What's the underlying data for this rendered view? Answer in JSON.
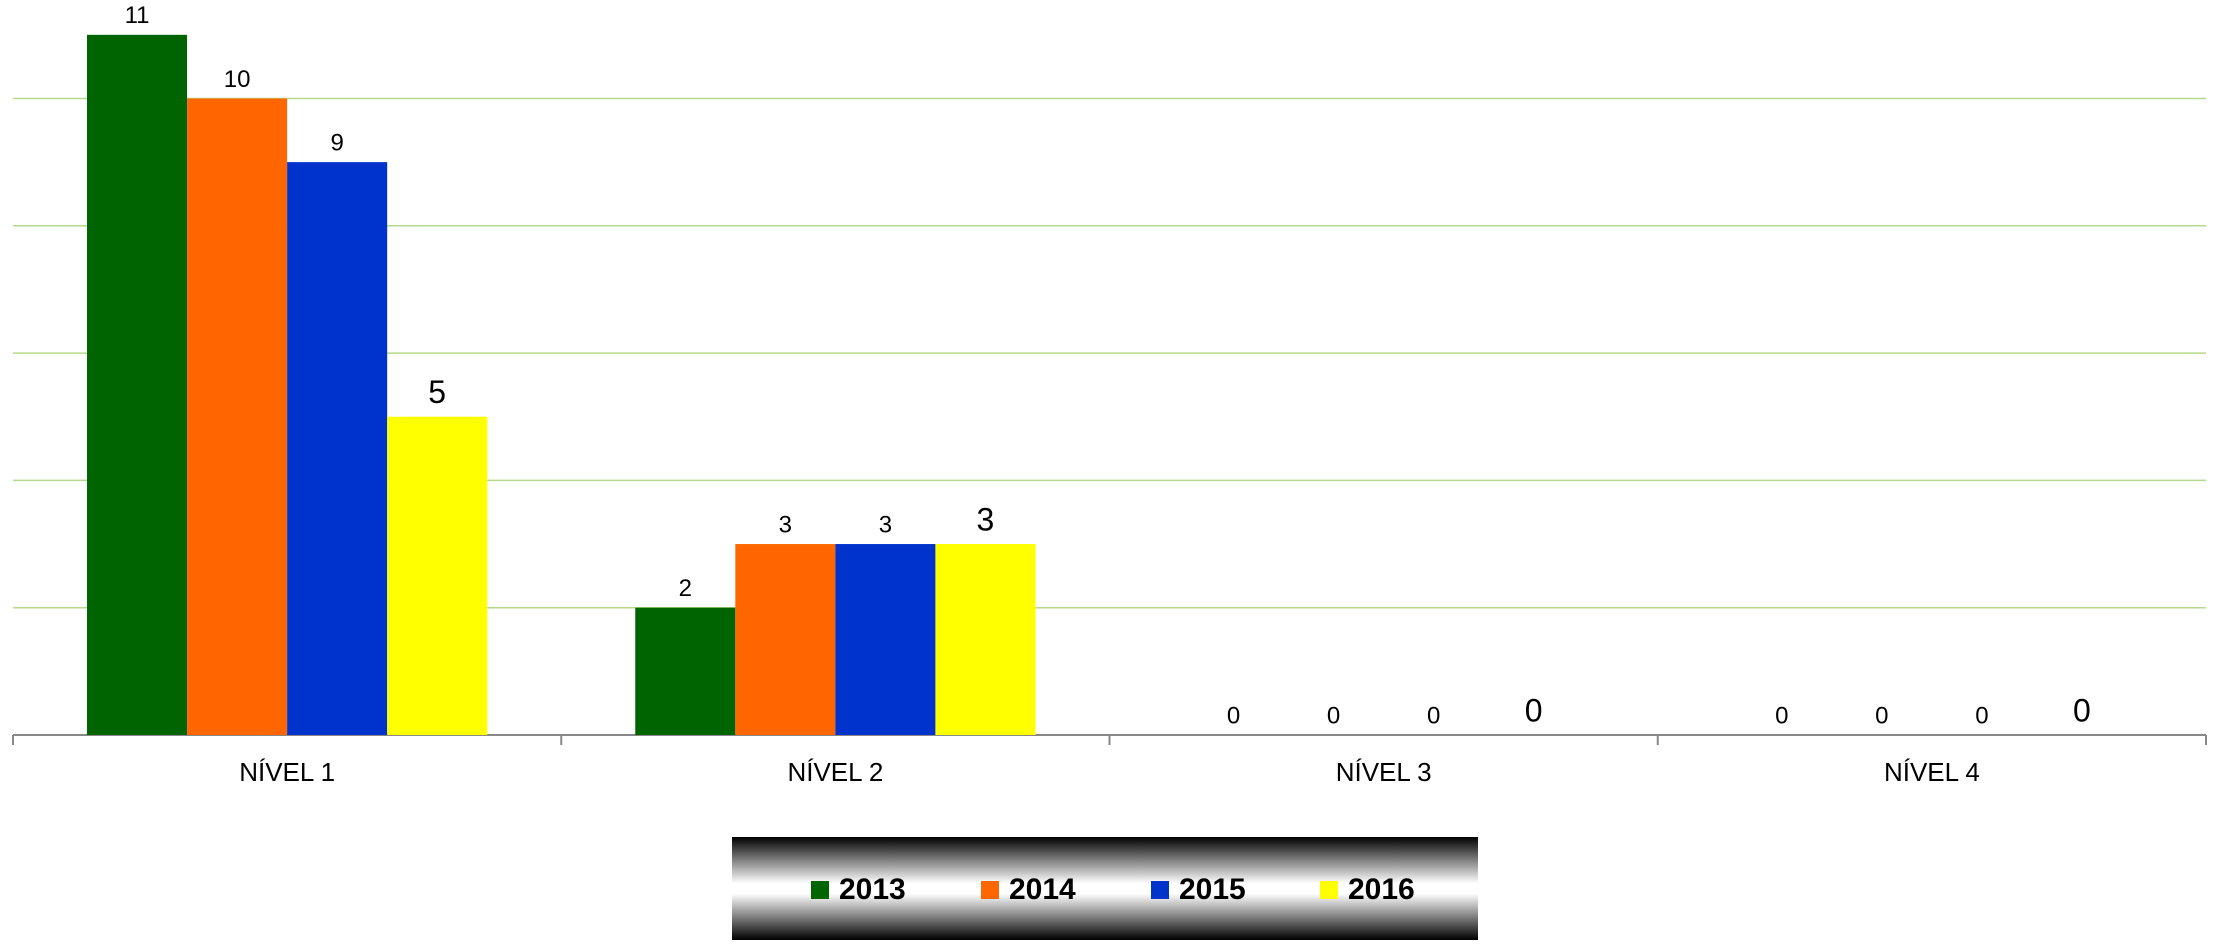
{
  "chart_data": {
    "type": "bar",
    "categories": [
      "NÍVEL 1",
      "NÍVEL 2",
      "NÍVEL 3",
      "NÍVEL 4"
    ],
    "series": [
      {
        "name": "2013",
        "color": "#006400",
        "values": [
          11,
          2,
          0,
          0
        ]
      },
      {
        "name": "2014",
        "color": "#ff6600",
        "values": [
          10,
          3,
          0,
          0
        ]
      },
      {
        "name": "2015",
        "color": "#0033cc",
        "values": [
          9,
          3,
          0,
          0
        ]
      },
      {
        "name": "2016",
        "color": "#ffff00",
        "values": [
          5,
          3,
          0,
          0
        ]
      }
    ],
    "ylim": [
      0,
      11.5
    ],
    "yticks": [
      0,
      2,
      4,
      6,
      8,
      10
    ],
    "grid": true,
    "legend": "bottom"
  }
}
